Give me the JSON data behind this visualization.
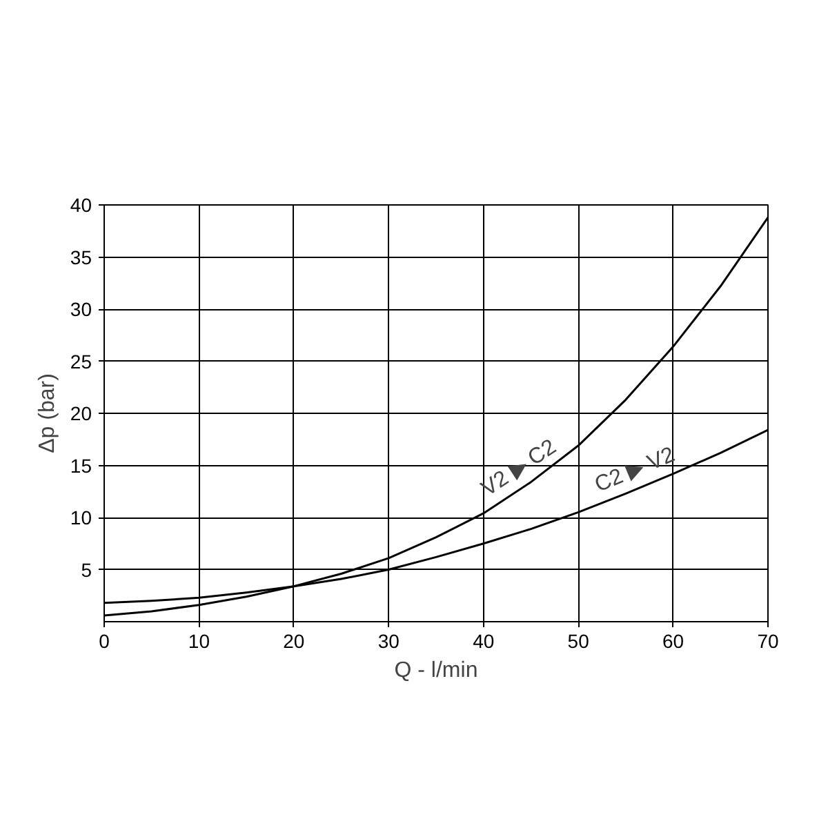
{
  "chart_data": {
    "type": "line",
    "xlabel": "Q - l/min",
    "ylabel": "Δp (bar)",
    "x": [
      0,
      5,
      10,
      15,
      20,
      25,
      30,
      35,
      40,
      45,
      50,
      55,
      60,
      65,
      70
    ],
    "series": [
      {
        "name": "V2 ▶ C2",
        "color": "#000000",
        "values": [
          0.6,
          1.0,
          1.6,
          2.4,
          3.4,
          4.6,
          6.1,
          8.1,
          10.4,
          13.4,
          16.9,
          21.3,
          26.4,
          32.2,
          38.8
        ]
      },
      {
        "name": "C2 ▶ V2",
        "color": "#000000",
        "values": [
          1.8,
          2.0,
          2.3,
          2.8,
          3.4,
          4.1,
          5.0,
          6.2,
          7.5,
          8.9,
          10.5,
          12.3,
          14.2,
          16.2,
          18.4
        ]
      }
    ],
    "xlim": [
      0,
      70
    ],
    "ylim": [
      0,
      40
    ],
    "xticks": [
      0,
      10,
      20,
      30,
      40,
      50,
      60,
      70
    ],
    "yticks": [
      5,
      10,
      15,
      20,
      25,
      30,
      35,
      40
    ],
    "grid": true,
    "marker": "none",
    "line_style": "solid"
  }
}
